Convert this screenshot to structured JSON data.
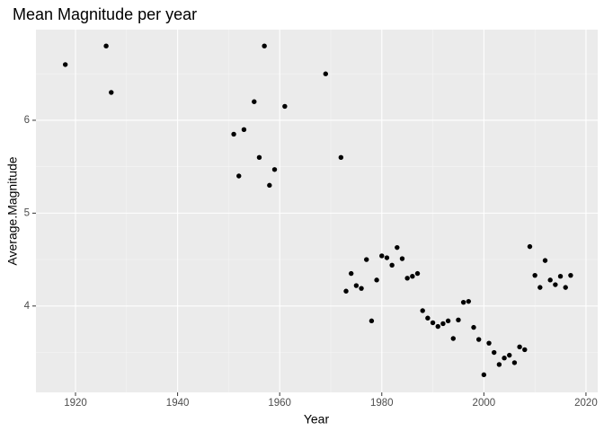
{
  "chart_data": {
    "type": "scatter",
    "title": "Mean Magnitude per year",
    "x_label": "Year",
    "y_label": "Average.Magnitude",
    "x": [
      1918,
      1926,
      1927,
      1951,
      1952,
      1953,
      1955,
      1956,
      1957,
      1958,
      1959,
      1961,
      1969,
      1972,
      1973,
      1974,
      1975,
      1976,
      1977,
      1978,
      1979,
      1980,
      1981,
      1982,
      1983,
      1984,
      1985,
      1986,
      1987,
      1988,
      1989,
      1990,
      1991,
      1992,
      1993,
      1994,
      1995,
      1996,
      1997,
      1998,
      1999,
      2000,
      2001,
      2002,
      2003,
      2004,
      2005,
      2006,
      2007,
      2008,
      2009,
      2010,
      2011,
      2012,
      2013,
      2014,
      2015,
      2016,
      2017
    ],
    "values": [
      6.6,
      6.8,
      6.3,
      5.85,
      5.4,
      5.9,
      6.2,
      5.6,
      6.8,
      5.3,
      5.47,
      6.15,
      6.5,
      5.6,
      4.16,
      4.35,
      4.22,
      4.19,
      4.5,
      3.84,
      4.28,
      4.54,
      4.52,
      4.44,
      4.63,
      4.51,
      4.3,
      4.32,
      4.35,
      3.95,
      3.87,
      3.82,
      3.78,
      3.81,
      3.84,
      3.65,
      3.85,
      4.04,
      4.05,
      3.77,
      3.64,
      3.26,
      3.6,
      3.5,
      3.37,
      3.44,
      3.47,
      3.39,
      3.56,
      3.53,
      4.64,
      4.33,
      4.2,
      4.49,
      4.28,
      4.23,
      4.32,
      4.2,
      4.33
    ],
    "color": "#000000",
    "xlim": [
      1912.25,
      2022.3
    ],
    "ylim": [
      3.07,
      6.976
    ],
    "xticks": [
      1920,
      1940,
      1960,
      1980,
      2000,
      2020
    ],
    "yticks": [
      4,
      5,
      6
    ],
    "grid": true,
    "minor_grid": true
  }
}
